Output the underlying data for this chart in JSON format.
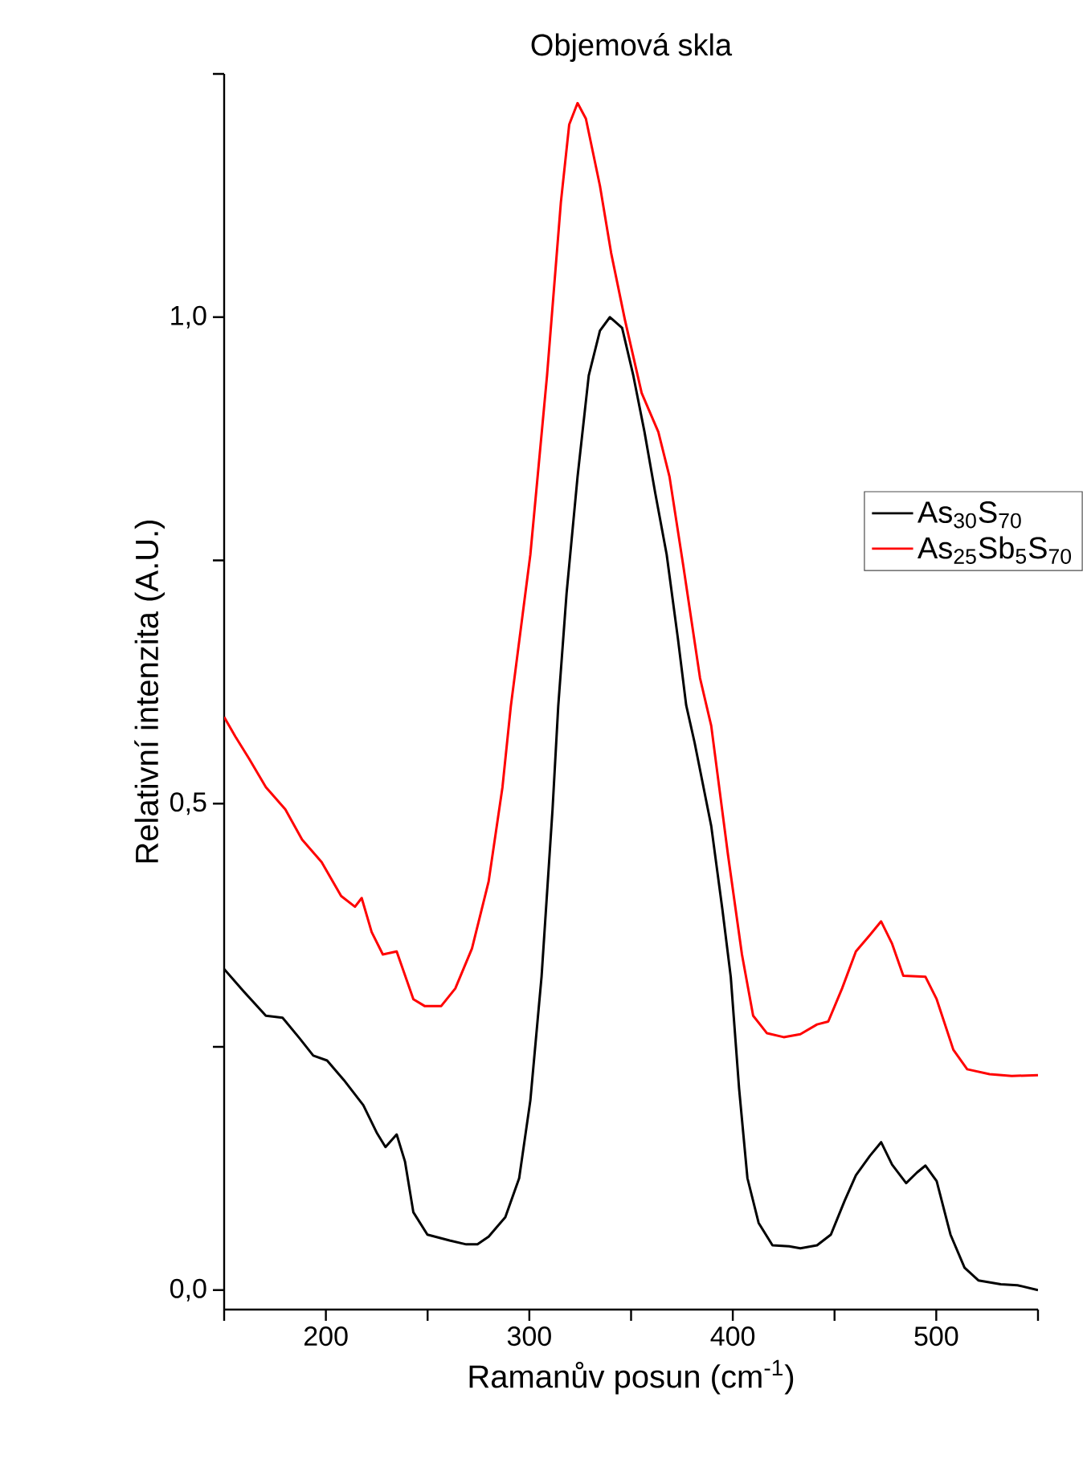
{
  "chart_data": {
    "type": "line",
    "title": "Objemová skla",
    "xlabel": "Ramanův posun (cm$^{-1}$)",
    "ylabel": "Relativní intenzita (A.U.)",
    "xlim": [
      150,
      550
    ],
    "ylim": [
      -0.02,
      1.25
    ],
    "xticks": [
      {
        "value": 150,
        "label": null
      },
      200,
      {
        "value": 250,
        "label": null
      },
      300,
      {
        "value": 350,
        "label": null
      },
      400,
      {
        "value": 450,
        "label": null
      },
      500,
      {
        "value": 550,
        "label": null
      }
    ],
    "yticks": [
      {
        "value": 0,
        "label": "0,0"
      },
      {
        "value": 0.25,
        "label": null
      },
      {
        "value": 0.5,
        "label": "0,5"
      },
      {
        "value": 0.75,
        "label": null
      },
      {
        "value": 1.0,
        "label": "1,0"
      },
      {
        "value": 1.25,
        "label": null
      }
    ],
    "legend": "right",
    "line_style": "solid",
    "marker": "none",
    "series": [
      {
        "name": "As$_{30}$S$_{70}$",
        "color": "#000000",
        "x": [
          150,
          159.6,
          170.5,
          178.7,
          187,
          193.8,
          200.6,
          208.8,
          218.4,
          225.2,
          229.3,
          234.8,
          238.9,
          243,
          249.9,
          260.8,
          269,
          274.5,
          280,
          288.2,
          295,
          300.5,
          306,
          311.4,
          314.2,
          318.3,
          323.7,
          329.2,
          334.7,
          339.6,
          345.6,
          351.1,
          356.6,
          361.9,
          367.5,
          373,
          377.1,
          381.2,
          389.4,
          394.9,
          399,
          403.1,
          407.2,
          412.7,
          419.5,
          427.7,
          433.2,
          441.4,
          448.2,
          455,
          460.5,
          467.4,
          472.9,
          478.3,
          485.2,
          490.6,
          494.7,
          500.2,
          507,
          513.9,
          520.7,
          531.7,
          539.9,
          550
        ],
        "values": [
          0.33,
          0.307,
          0.282,
          0.28,
          0.259,
          0.241,
          0.236,
          0.216,
          0.19,
          0.161,
          0.147,
          0.16,
          0.132,
          0.08,
          0.057,
          0.051,
          0.047,
          0.047,
          0.055,
          0.075,
          0.115,
          0.195,
          0.322,
          0.494,
          0.6,
          0.716,
          0.836,
          0.94,
          0.986,
          1.0,
          0.989,
          0.94,
          0.882,
          0.819,
          0.756,
          0.67,
          0.601,
          0.563,
          0.477,
          0.391,
          0.322,
          0.207,
          0.115,
          0.069,
          0.046,
          0.045,
          0.043,
          0.046,
          0.057,
          0.092,
          0.118,
          0.138,
          0.152,
          0.129,
          0.11,
          0.121,
          0.128,
          0.112,
          0.057,
          0.023,
          0.01,
          0.006,
          0.005,
          0.0
        ]
      },
      {
        "name": "As$_{25}$Sb$_{5}$S$_{70}$",
        "color": "#ff0000",
        "x": [
          150,
          155.5,
          162.3,
          170.5,
          180.1,
          188.3,
          197.9,
          207.5,
          214.3,
          217.6,
          222.5,
          228,
          234.8,
          243,
          248.5,
          256.7,
          263.6,
          271.8,
          280,
          286.8,
          290.9,
          300.5,
          308.7,
          315.5,
          319.6,
          323.7,
          327.8,
          334.7,
          340.2,
          347,
          355.2,
          363.4,
          368.9,
          375.7,
          383.9,
          389.4,
          397.6,
          404.5,
          410,
          416.8,
          425,
          433.2,
          441.4,
          446.9,
          453.7,
          460.5,
          467.4,
          472.9,
          478.3,
          483.8,
          494.7,
          500.2,
          508.4,
          515.2,
          526.2,
          537.1,
          550
        ],
        "values": [
          0.589,
          0.569,
          0.546,
          0.517,
          0.494,
          0.463,
          0.44,
          0.405,
          0.394,
          0.403,
          0.368,
          0.345,
          0.348,
          0.299,
          0.292,
          0.292,
          0.31,
          0.351,
          0.42,
          0.517,
          0.6,
          0.756,
          0.94,
          1.118,
          1.198,
          1.22,
          1.204,
          1.135,
          1.066,
          0.997,
          0.922,
          0.882,
          0.836,
          0.744,
          0.629,
          0.58,
          0.448,
          0.345,
          0.282,
          0.264,
          0.26,
          0.263,
          0.273,
          0.276,
          0.31,
          0.348,
          0.365,
          0.379,
          0.356,
          0.323,
          0.322,
          0.299,
          0.247,
          0.227,
          0.222,
          0.22,
          0.221
        ]
      }
    ]
  }
}
